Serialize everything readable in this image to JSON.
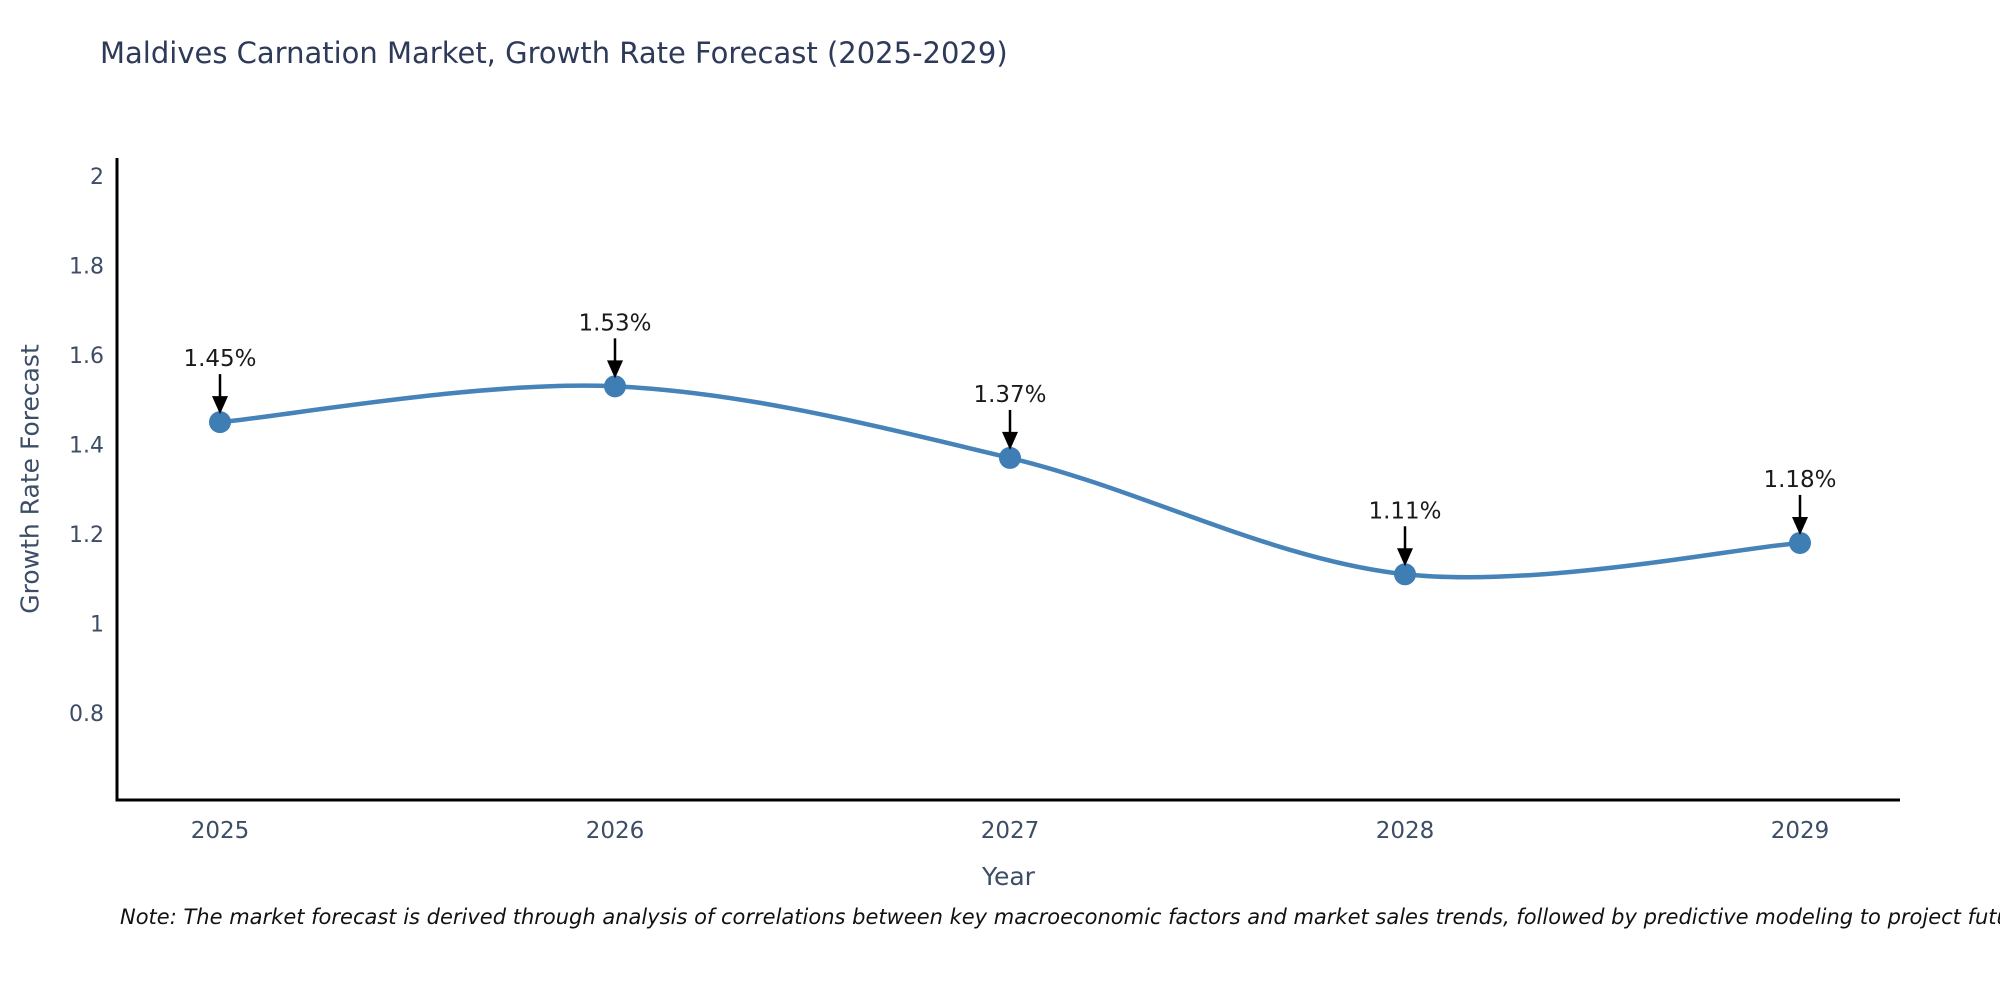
{
  "title": "Maldives Carnation Market, Growth Rate Forecast (2025-2029)",
  "note": "Note: The market forecast is derived through analysis of correlations between key macroeconomic factors and market sales trends, followed by predictive modeling to project future sales",
  "chart_data": {
    "type": "line",
    "title": "Maldives Carnation Market, Growth Rate Forecast (2025-2029)",
    "xlabel": "Year",
    "ylabel": "Growth Rate Forecast",
    "categories": [
      2025,
      2026,
      2027,
      2028,
      2029
    ],
    "values": [
      1.45,
      1.53,
      1.37,
      1.11,
      1.18
    ],
    "point_labels": [
      "1.45%",
      "1.53%",
      "1.37%",
      "1.11%",
      "1.18%"
    ],
    "y_ticks": [
      0.8,
      1,
      1.2,
      1.4,
      1.6,
      1.8,
      2
    ],
    "ylim": [
      0.61,
      2.04
    ],
    "grid": false,
    "legend": "none",
    "curve": "smooth-spline",
    "colors": {
      "line": "#4583b8",
      "marker": "#3f7db5",
      "annotation_text": "#1a1a1a",
      "annotation_arrow": "#000000",
      "axis_line": "#000000",
      "tick_text": "#3d4d66",
      "title_text": "#2e3a59",
      "background": "#ffffff"
    }
  }
}
